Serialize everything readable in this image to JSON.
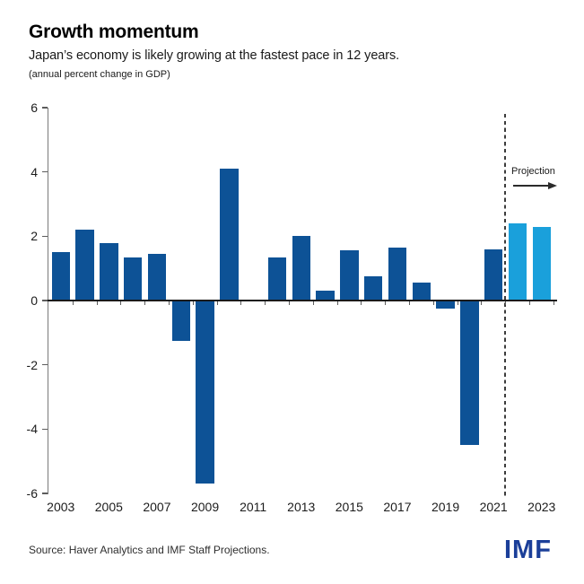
{
  "header": {
    "title": "Growth momentum",
    "subtitle": "Japan’s economy is likely growing at the fastest pace in 12 years.",
    "note": "(annual percent change in GDP)"
  },
  "chart_data": {
    "type": "bar",
    "title": "Growth momentum",
    "units": "annual percent change in GDP",
    "categories": [
      2003,
      2004,
      2005,
      2006,
      2007,
      2008,
      2009,
      2010,
      2011,
      2012,
      2013,
      2014,
      2015,
      2016,
      2017,
      2018,
      2019,
      2020,
      2021,
      2022,
      2023
    ],
    "values": [
      1.5,
      2.2,
      1.8,
      1.35,
      1.45,
      -1.25,
      -5.7,
      4.1,
      0,
      1.35,
      2,
      0.3,
      1.55,
      0.75,
      1.65,
      0.55,
      -0.25,
      -4.5,
      1.6,
      2.4,
      2.3
    ],
    "projected_years": [
      2022,
      2023
    ],
    "annotation": "Projection",
    "ylim": [
      -6,
      6
    ],
    "ytick_step": 2,
    "ytick_labels": [
      "6",
      "4",
      "2",
      "0",
      "-2",
      "-4",
      "-6"
    ],
    "xtick_labels": [
      "2003",
      "2005",
      "2007",
      "2009",
      "2011",
      "2013",
      "2015",
      "2017",
      "2019",
      "2021",
      "2023"
    ],
    "grid": false,
    "legend": "none",
    "xlabel": "",
    "ylabel": ""
  },
  "footer": {
    "source": "Source: Haver Analytics and IMF Staff Projections.",
    "logo": "IMF"
  },
  "colors": {
    "bar_historical": "#0d5296",
    "bar_projection": "#1aa0db",
    "logo_blue": "#1b3f99",
    "axis": "#7a7a7a",
    "divider": "#3c3c3c"
  }
}
